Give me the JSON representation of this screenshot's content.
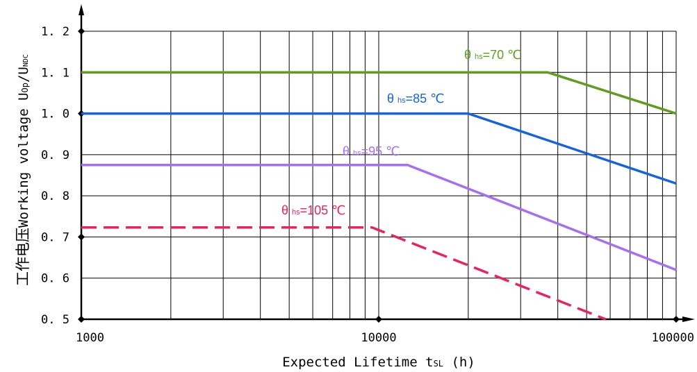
{
  "chart_data": {
    "type": "line",
    "x_scale": "log",
    "xlim": [
      1000,
      100000
    ],
    "ylim": [
      0.5,
      1.2
    ],
    "grid": true,
    "xlabel": "Expected Lifetime t",
    "xlabel_sub": "SL",
    "xlabel_unit": "(h)",
    "ylabel_cn": "工作电压",
    "ylabel": "Working voltage",
    "ylabel_ratio": {
      "main1": "U",
      "sub1": "Op",
      "sep": "/U",
      "sub2": "NDC"
    },
    "x_tick_labels": [
      "1000",
      "10000",
      "100000"
    ],
    "y_tick_labels": [
      "0.5",
      "0.6",
      "0.7",
      "0.8",
      "0.9",
      "1.0",
      "1.1",
      "1.2"
    ],
    "series": [
      {
        "label_prefix": "θ",
        "label_sub": "hs",
        "label_value": "=70 ℃",
        "color": "#5f9d1e",
        "dashed": false,
        "x": [
          1000,
          37000,
          100000
        ],
        "y": [
          1.1,
          1.1,
          1.0
        ]
      },
      {
        "label_prefix": "θ",
        "label_sub": "hs",
        "label_value": "=85 ℃",
        "color": "#1463e0",
        "dashed": false,
        "x": [
          1000,
          20000,
          100000
        ],
        "y": [
          1.0,
          1.0,
          0.83
        ]
      },
      {
        "label_prefix": "θ",
        "label_sub": "hs",
        "label_value": "=95 ℃",
        "color": "#a66ef0",
        "dashed": false,
        "x": [
          1000,
          12500,
          100000
        ],
        "y": [
          0.875,
          0.875,
          0.62
        ]
      },
      {
        "label_prefix": "θ",
        "label_sub": "hs",
        "label_value": "=105 ℃",
        "color": "#e8235f",
        "dashed": true,
        "x": [
          1000,
          9500,
          58000
        ],
        "y": [
          0.723,
          0.723,
          0.5
        ]
      }
    ]
  }
}
